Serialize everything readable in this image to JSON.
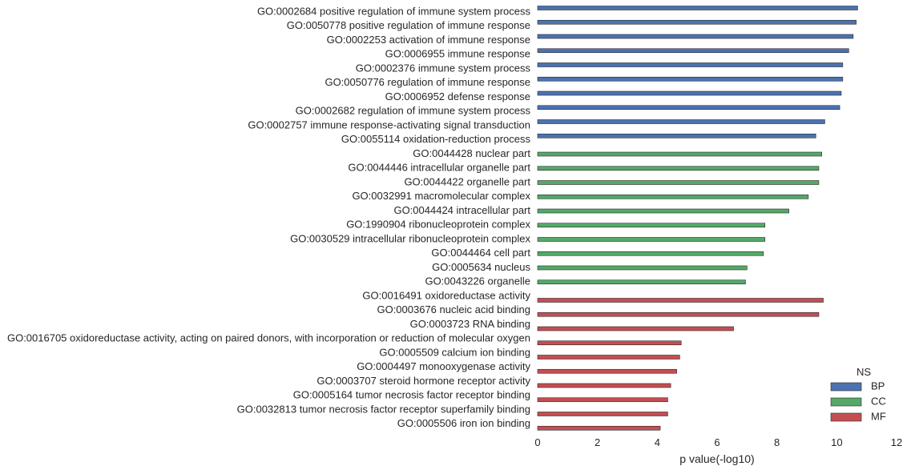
{
  "chart_data": {
    "type": "bar",
    "orientation": "horizontal",
    "title": "",
    "xlabel": "p value(-log10)",
    "ylabel": "",
    "xlim": [
      0,
      12
    ],
    "xticks": [
      0,
      2,
      4,
      6,
      8,
      10,
      12
    ],
    "grid": false,
    "legend": {
      "title": "NS",
      "placement": "bottom-right",
      "entries": [
        {
          "name": "BP",
          "color": "#4c72b0"
        },
        {
          "name": "CC",
          "color": "#55a868"
        },
        {
          "name": "MF",
          "color": "#c44e52"
        }
      ]
    },
    "categories": [
      "GO:0002684 positive regulation of immune system process",
      "GO:0050778 positive regulation of immune response",
      "GO:0002253 activation of immune response",
      "GO:0006955 immune response",
      "GO:0002376 immune system process",
      "GO:0050776 regulation of immune response",
      "GO:0006952 defense response",
      "GO:0002682 regulation of immune system process",
      "GO:0002757 immune response-activating signal transduction",
      "GO:0055114 oxidation-reduction process",
      "GO:0044428 nuclear part",
      "GO:0044446 intracellular organelle part",
      "GO:0044422 organelle part",
      "GO:0032991 macromolecular complex",
      "GO:0044424 intracellular part",
      "GO:1990904 ribonucleoprotein complex",
      "GO:0030529 intracellular ribonucleoprotein complex",
      "GO:0044464 cell part",
      "GO:0005634 nucleus",
      "GO:0043226 organelle",
      "GO:0016491 oxidoreductase activity",
      "GO:0003676 nucleic acid binding",
      "GO:0003723 RNA binding",
      "GO:0016705 oxidoreductase activity, acting on paired donors, with incorporation or reduction of molecular oxygen",
      "GO:0005509 calcium ion binding",
      "GO:0004497 monooxygenase activity",
      "GO:0003707 steroid hormone receptor activity",
      "GO:0005164 tumor necrosis factor receptor binding",
      "GO:0032813 tumor necrosis factor receptor superfamily binding",
      "GO:0005506 iron ion binding"
    ],
    "series": [
      {
        "name": "BP",
        "values": [
          10.7,
          10.65,
          10.55,
          10.4,
          10.2,
          10.2,
          10.15,
          10.1,
          9.6,
          9.3,
          null,
          null,
          null,
          null,
          null,
          null,
          null,
          null,
          null,
          null,
          null,
          null,
          null,
          null,
          null,
          null,
          null,
          null,
          null,
          null
        ]
      },
      {
        "name": "CC",
        "values": [
          null,
          null,
          null,
          null,
          null,
          null,
          null,
          null,
          null,
          null,
          9.5,
          9.4,
          9.4,
          9.05,
          8.4,
          7.6,
          7.6,
          7.55,
          7.0,
          6.95,
          null,
          null,
          null,
          null,
          null,
          null,
          null,
          null,
          null,
          null
        ]
      },
      {
        "name": "MF",
        "values": [
          null,
          null,
          null,
          null,
          null,
          null,
          null,
          null,
          null,
          null,
          null,
          null,
          null,
          null,
          null,
          null,
          null,
          null,
          null,
          null,
          9.55,
          9.4,
          6.55,
          4.8,
          4.75,
          4.65,
          4.45,
          4.35,
          4.35,
          4.1
        ]
      }
    ]
  }
}
